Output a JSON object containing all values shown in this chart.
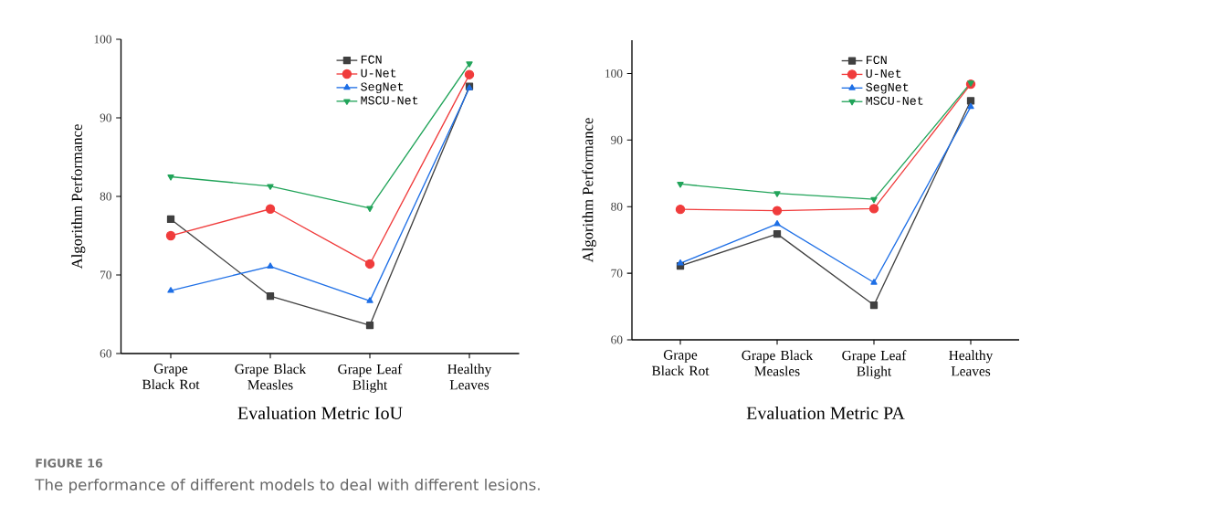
{
  "chart_data": [
    {
      "type": "line",
      "title": "Evaluation Metric IoU",
      "ylabel": "Algorithm Performance",
      "categories": [
        "Grape Black Rot",
        "Grape Black Measles",
        "Grape Leaf Blight",
        "Healthy Leaves"
      ],
      "series": [
        {
          "name": "FCN",
          "color": "#404040",
          "marker": "square",
          "values": [
            77.1,
            67.3,
            63.6,
            94.0
          ]
        },
        {
          "name": "U-Net",
          "color": "#f03c3c",
          "marker": "circle",
          "values": [
            75.0,
            78.4,
            71.4,
            95.5
          ]
        },
        {
          "name": "SegNet",
          "color": "#1e6fe6",
          "marker": "triangle",
          "values": [
            68.0,
            71.1,
            66.7,
            93.8
          ]
        },
        {
          "name": "MSCU-Net",
          "color": "#22a45a",
          "marker": "triangle-down",
          "values": [
            82.5,
            81.3,
            78.5,
            96.9
          ]
        }
      ],
      "ylim": [
        60,
        100
      ],
      "yticks": [
        60,
        70,
        80,
        90,
        100
      ],
      "legend": "top right",
      "grid": false,
      "annotations": [
        "FIGURE 16",
        "The performance of different models to deal with different lesions."
      ]
    },
    {
      "type": "line",
      "title": "Evaluation Metric PA",
      "ylabel": "Algorithm Performance",
      "categories": [
        "Grape Black Rot",
        "Grape Black Measles",
        "Grape Leaf Blight",
        "Healthy Leaves"
      ],
      "series": [
        {
          "name": "FCN",
          "color": "#404040",
          "marker": "square",
          "values": [
            71.1,
            75.9,
            65.2,
            95.9
          ]
        },
        {
          "name": "U-Net",
          "color": "#f03c3c",
          "marker": "circle",
          "values": [
            79.6,
            79.4,
            79.7,
            98.4
          ]
        },
        {
          "name": "SegNet",
          "color": "#1e6fe6",
          "marker": "triangle",
          "values": [
            71.5,
            77.4,
            68.6,
            95.0
          ]
        },
        {
          "name": "MSCU-Net",
          "color": "#22a45a",
          "marker": "triangle-down",
          "values": [
            83.4,
            82.0,
            81.1,
            98.6
          ]
        }
      ],
      "ylim": [
        60,
        105
      ],
      "yticks": [
        60,
        70,
        80,
        90,
        100
      ],
      "legend": "top right",
      "grid": false
    }
  ]
}
